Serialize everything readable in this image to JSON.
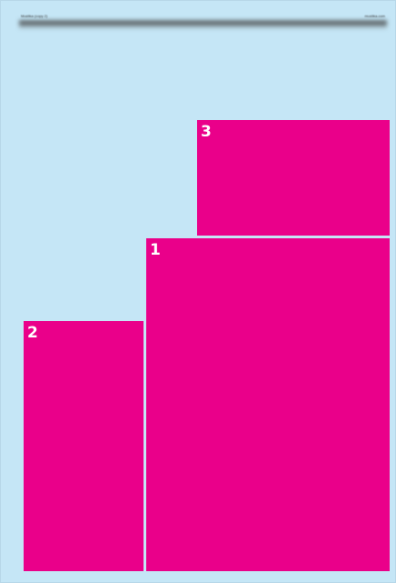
{
  "header": {
    "left_text": "Mustika (copy 2)",
    "right_text": "mustika.com"
  },
  "blocks": [
    {
      "id": "1",
      "label": "1"
    },
    {
      "id": "2",
      "label": "2"
    },
    {
      "id": "3",
      "label": "3"
    }
  ],
  "colors": {
    "page_background": "#c5e6f6",
    "block_fill": "#ea008a",
    "label_text": "#ffffff"
  }
}
